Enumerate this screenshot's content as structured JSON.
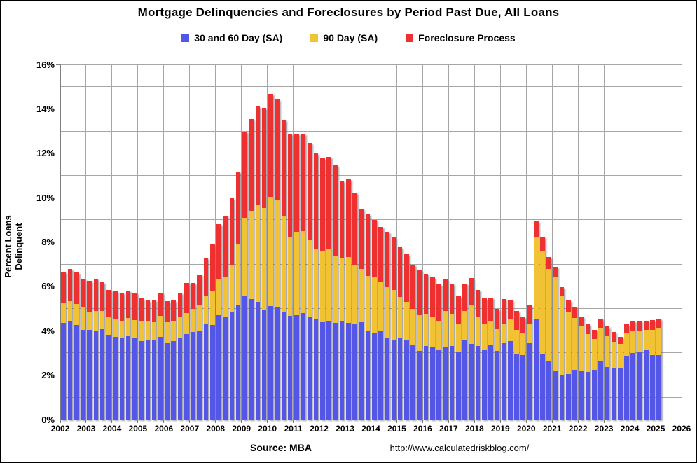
{
  "title": "Mortgage Delinquencies and Foreclosures by Period Past Due, All Loans",
  "footer": {
    "source": "Source: MBA",
    "url": "http://www.calculatedriskblog.com/"
  },
  "colors": {
    "blue_30_60": "#5456e8",
    "yellow_90": "#f2c235",
    "red_foreclosure": "#ee3030",
    "gridline": "#a6a6a6",
    "axis": "#7f7f7f",
    "background": "#ffffff",
    "text": "#000000"
  },
  "chart_data": {
    "type": "bar",
    "subtype": "stacked-quarterly",
    "title": "Mortgage Delinquencies and Foreclosures by Period Past Due, All Loans",
    "ylabel": "Percent Loans Delinquent",
    "xlabel": "",
    "ylim": [
      0,
      16
    ],
    "y_major_tick_step": 2,
    "y_minor_gridline_step": 1,
    "y_tick_labels": [
      "0%",
      "2%",
      "4%",
      "6%",
      "8%",
      "10%",
      "12%",
      "14%",
      "16%"
    ],
    "x_years": [
      2002,
      2003,
      2004,
      2005,
      2006,
      2007,
      2008,
      2009,
      2010,
      2011,
      2012,
      2013,
      2014,
      2015,
      2016,
      2017,
      2018,
      2019,
      2020,
      2021,
      2022,
      2023,
      2024,
      2025,
      2026
    ],
    "first_bar": "2002 Q1",
    "last_bar": "2025 Q1",
    "grid": true,
    "legend_position": "top-center",
    "source": "Source: MBA",
    "url": "http://www.calculatedriskblog.com/",
    "series": [
      {
        "name": "30 and 60 Day (SA)",
        "color": "#5456e8",
        "values": [
          4.35,
          4.45,
          4.25,
          4.05,
          4.04,
          4.02,
          4.06,
          3.81,
          3.72,
          3.67,
          3.8,
          3.7,
          3.52,
          3.56,
          3.61,
          3.72,
          3.46,
          3.52,
          3.7,
          3.85,
          3.94,
          4.01,
          4.3,
          4.25,
          4.72,
          4.6,
          4.85,
          5.15,
          5.6,
          5.43,
          5.3,
          4.93,
          5.11,
          5.07,
          4.83,
          4.67,
          4.72,
          4.79,
          4.62,
          4.51,
          4.41,
          4.46,
          4.35,
          4.46,
          4.37,
          4.3,
          4.41,
          3.99,
          3.88,
          3.99,
          3.65,
          3.6,
          3.66,
          3.6,
          3.35,
          3.09,
          3.3,
          3.28,
          3.14,
          3.28,
          3.3,
          3.05,
          3.6,
          3.4,
          3.31,
          3.14,
          3.35,
          3.09,
          3.46,
          3.53,
          2.97,
          2.9,
          3.46,
          4.51,
          2.93,
          2.62,
          2.2,
          1.99,
          2.04,
          2.25,
          2.17,
          2.15,
          2.23,
          2.62,
          2.38,
          2.33,
          2.3,
          2.88,
          2.99,
          3.04,
          3.11,
          2.9,
          2.9
        ]
      },
      {
        "name": "90 Day (SA)",
        "color": "#f2c235",
        "values": [
          0.9,
          0.88,
          0.95,
          1.0,
          0.82,
          0.88,
          0.83,
          0.81,
          0.78,
          0.78,
          0.78,
          0.78,
          0.93,
          0.89,
          0.81,
          0.95,
          0.92,
          0.92,
          0.93,
          0.96,
          1.04,
          1.14,
          1.25,
          1.55,
          1.63,
          1.85,
          2.1,
          2.73,
          3.5,
          3.97,
          4.35,
          4.6,
          4.92,
          4.8,
          4.36,
          3.57,
          3.73,
          3.7,
          3.47,
          3.16,
          3.2,
          3.24,
          3.05,
          2.79,
          2.95,
          2.68,
          2.36,
          2.47,
          2.54,
          2.2,
          2.3,
          2.23,
          1.85,
          1.7,
          1.63,
          1.63,
          1.47,
          1.34,
          1.32,
          1.6,
          1.45,
          1.25,
          1.28,
          1.77,
          1.31,
          1.16,
          1.11,
          1.0,
          0.84,
          0.98,
          1.07,
          0.98,
          0.84,
          3.73,
          4.68,
          4.15,
          4.2,
          3.57,
          2.79,
          2.33,
          2.05,
          1.7,
          1.39,
          1.5,
          1.4,
          1.16,
          1.11,
          1.0,
          1.03,
          0.98,
          0.92,
          1.13,
          1.22
        ]
      },
      {
        "name": "Foreclosure Process",
        "color": "#ee3030",
        "values": [
          1.42,
          1.47,
          1.42,
          1.3,
          1.39,
          1.45,
          1.31,
          1.21,
          1.28,
          1.25,
          1.22,
          1.22,
          1.0,
          0.9,
          0.99,
          1.03,
          0.94,
          0.94,
          1.07,
          1.33,
          1.16,
          1.38,
          1.75,
          2.08,
          2.47,
          2.72,
          3.02,
          3.3,
          3.87,
          4.15,
          4.47,
          4.52,
          4.66,
          4.56,
          4.31,
          4.63,
          4.44,
          4.38,
          4.36,
          4.31,
          4.17,
          4.12,
          4.05,
          3.52,
          3.5,
          3.26,
          2.74,
          2.78,
          2.56,
          2.48,
          2.5,
          2.36,
          2.26,
          2.15,
          2.0,
          2.0,
          1.79,
          1.78,
          1.63,
          1.42,
          1.36,
          1.25,
          1.23,
          1.19,
          1.21,
          1.16,
          1.02,
          0.89,
          1.13,
          0.89,
          0.84,
          0.74,
          0.84,
          0.69,
          0.63,
          0.55,
          0.48,
          0.42,
          0.52,
          0.51,
          0.42,
          0.45,
          0.42,
          0.44,
          0.42,
          0.44,
          0.31,
          0.42,
          0.42,
          0.42,
          0.41,
          0.45,
          0.42
        ]
      }
    ]
  }
}
